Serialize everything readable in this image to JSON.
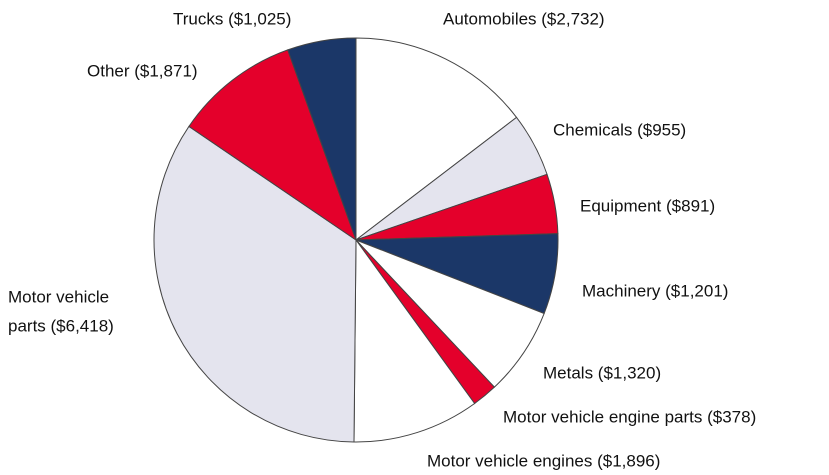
{
  "chart_data": {
    "type": "pie",
    "categories": [
      "Automobiles",
      "Chemicals",
      "Equipment",
      "Machinery",
      "Metals",
      "Motor vehicle engine parts",
      "Motor vehicle engines",
      "Motor vehicle parts",
      "Other",
      "Trucks"
    ],
    "labels": [
      [
        "Automobiles ($2,732)"
      ],
      [
        "Chemicals ($955)"
      ],
      [
        "Equipment ($891)"
      ],
      [
        "Machinery ($1,201)"
      ],
      [
        "Metals ($1,320)"
      ],
      [
        "Motor vehicle engine parts ($378)"
      ],
      [
        "Motor vehicle engines ($1,896)"
      ],
      [
        "Motor vehicle",
        "parts ($6,418)"
      ],
      [
        "Other ($1,871)"
      ],
      [
        "Trucks ($1,025)"
      ]
    ],
    "values": [
      2732,
      955,
      891,
      1201,
      1320,
      378,
      1896,
      6418,
      1871,
      1025
    ],
    "colors": [
      "#ffffff",
      "#e4e4ee",
      "#e4002b",
      "#1b3768",
      "#ffffff",
      "#e4002b",
      "#ffffff",
      "#e4e4ee",
      "#e4002b",
      "#1b3768"
    ]
  }
}
